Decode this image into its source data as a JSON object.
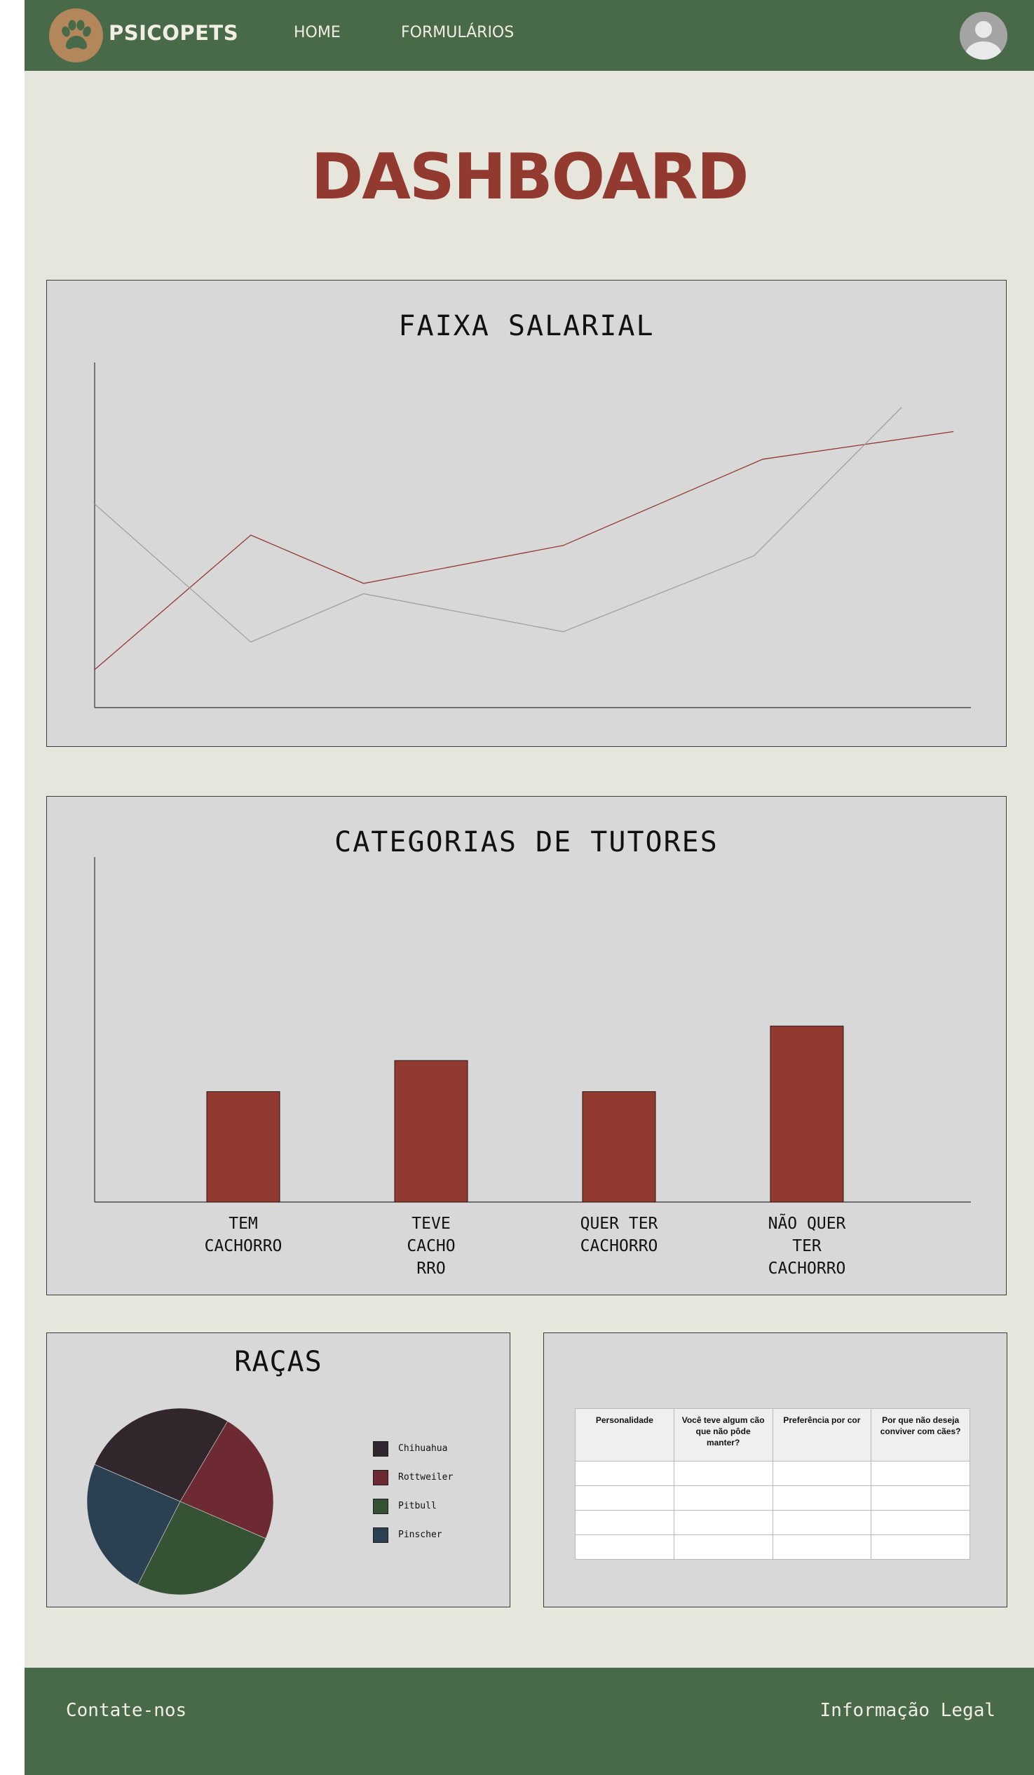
{
  "header": {
    "brand": "PSICOPETS",
    "logo_icon": "paw-icon",
    "nav": [
      {
        "label": "HOME"
      },
      {
        "label": "FORMULÁRIOS"
      }
    ],
    "avatar_icon": "user-avatar-icon"
  },
  "page_title": "DASHBOARD",
  "colors": {
    "header_bg": "#496a49",
    "page_bg": "#e7e6dc",
    "accent": "#933a30",
    "panel_bg": "#d8d8d8"
  },
  "chart_data": [
    {
      "type": "line",
      "title": "FAIXA SALARIAL",
      "xlabel": "",
      "ylabel": "",
      "x": [
        0,
        1,
        2,
        3,
        4,
        5
      ],
      "series": [
        {
          "color": "#933a30",
          "x": [
            0,
            0.9,
            1.55,
            2.7,
            3.85,
            4.95
          ],
          "values": [
            11,
            50,
            36,
            47,
            72,
            80
          ]
        },
        {
          "color": "#a0a0a0",
          "x": [
            0,
            0.9,
            1.55,
            2.7,
            3.8,
            4.65
          ],
          "values": [
            59,
            19,
            33,
            22,
            44,
            87
          ]
        }
      ],
      "xlim": [
        0,
        5.05
      ],
      "ylim": [
        0,
        100
      ],
      "grid": false,
      "legend": "none"
    },
    {
      "type": "bar",
      "title": "CATEGORIAS DE TUTORES",
      "categories": [
        "TEM CACHORRO",
        "TEVE CACHORRO",
        "QUER TER CACHORRO",
        "NÃO QUER TER CACHORRO"
      ],
      "category_labels": [
        "TEM\nCACHORRO",
        "TEVE\nCACHO\nRRO",
        "QUER TER\nCACHORRO",
        "NÃO QUER\nTER\nCACHORRO"
      ],
      "values": [
        32,
        41,
        32,
        51
      ],
      "ylim": [
        0,
        100
      ],
      "color": "#933a30",
      "grid": false,
      "legend": "none"
    },
    {
      "type": "pie",
      "title": "RAÇAS",
      "labels": [
        "Chihuahua",
        "Rottweiler",
        "Pitbull",
        "Pinscher"
      ],
      "values": [
        27,
        23,
        26,
        24
      ],
      "colors": [
        "#30262b",
        "#6e2a33",
        "#355334",
        "#2b4152"
      ],
      "legend": "right"
    }
  ],
  "table": {
    "columns": [
      "Personalidade",
      "Você teve algum cão que não pôde manter?",
      "Preferência por cor",
      "Por que não deseja conviver com cães?"
    ],
    "rows": [
      [
        "",
        "",
        "",
        ""
      ],
      [
        "",
        "",
        "",
        ""
      ],
      [
        "",
        "",
        "",
        ""
      ],
      [
        "",
        "",
        "",
        ""
      ]
    ]
  },
  "footer": {
    "contact": "Contate-nos",
    "legal": "Informação Legal"
  }
}
